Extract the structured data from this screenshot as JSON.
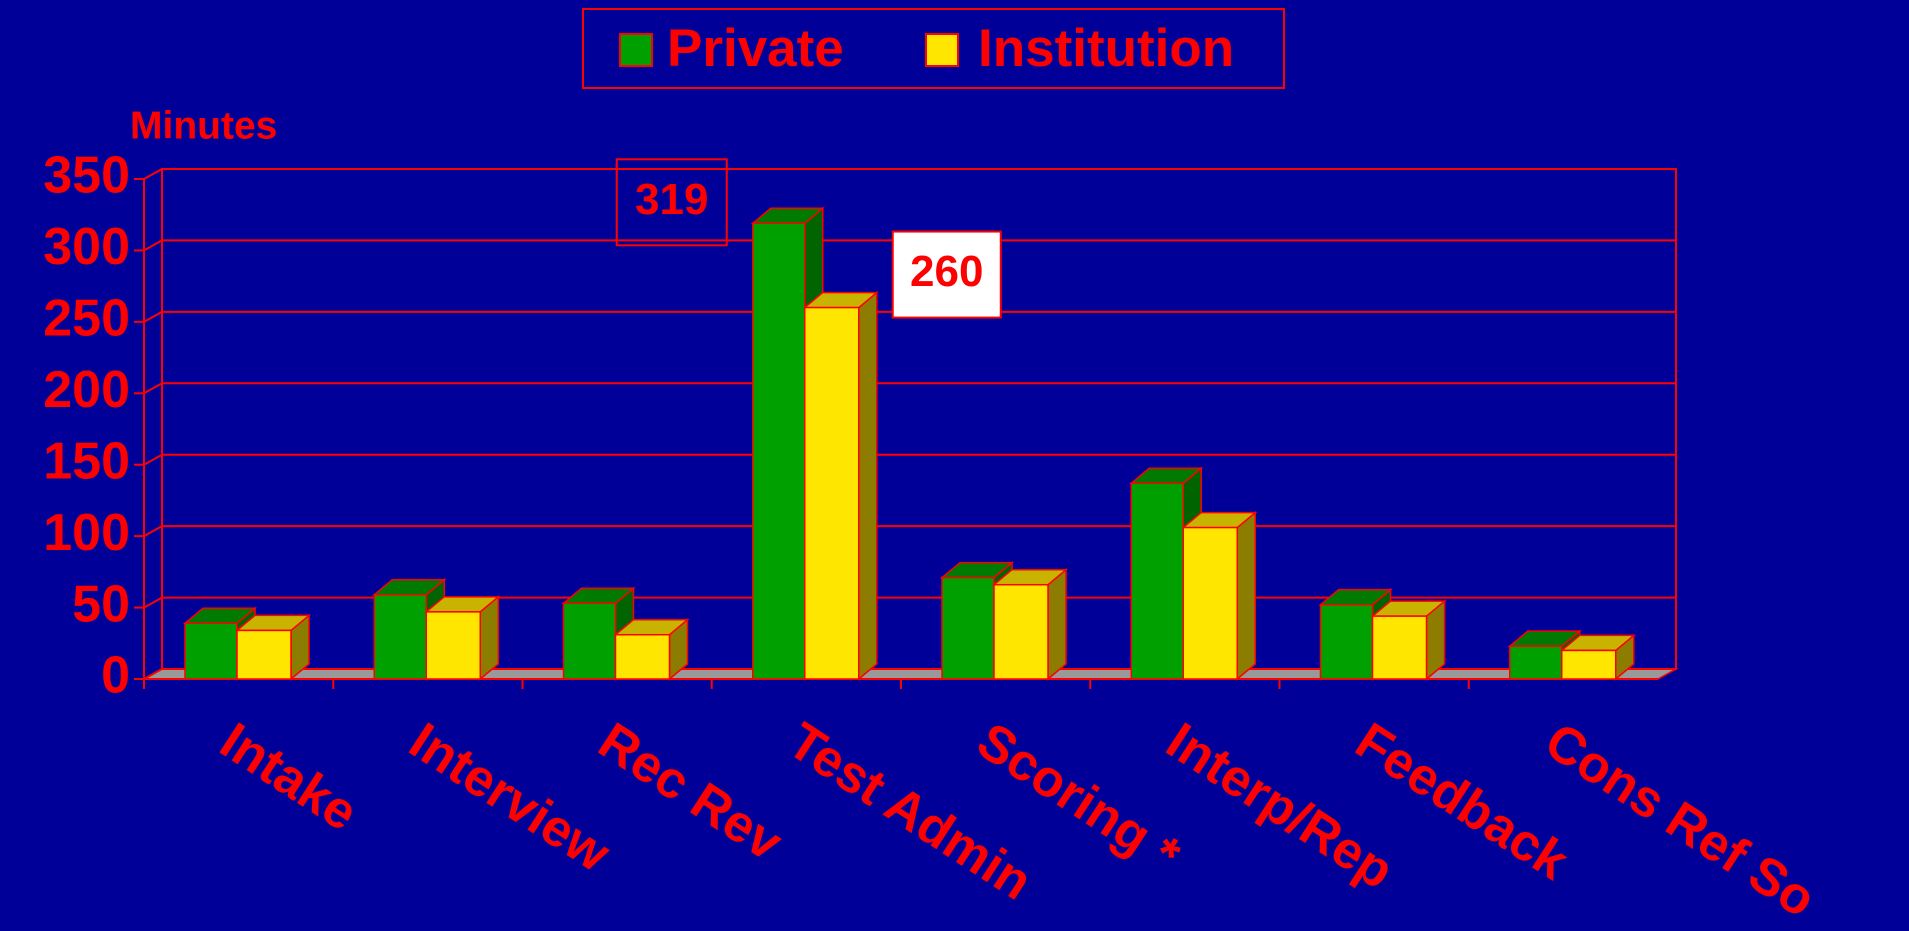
{
  "chart_data": {
    "type": "bar3d",
    "y_label": "Minutes",
    "categories": [
      "Intake",
      "Interview",
      "Rec Rev",
      "Test Admin",
      "Scoring *",
      "Interp/Rep",
      "Feedback",
      "Cons Ref So"
    ],
    "series": [
      {
        "name": "Private",
        "color": "#00a000",
        "values": [
          39,
          59,
          53,
          319,
          71,
          137,
          52,
          23
        ]
      },
      {
        "name": "Institution",
        "color": "#ffe600",
        "values": [
          34,
          47,
          31,
          260,
          66,
          106,
          44,
          20
        ]
      }
    ],
    "ylim": [
      0,
      350
    ],
    "yticks": [
      0,
      50,
      100,
      150,
      200,
      250,
      300,
      350
    ],
    "grid": true,
    "legend": "top"
  }
}
